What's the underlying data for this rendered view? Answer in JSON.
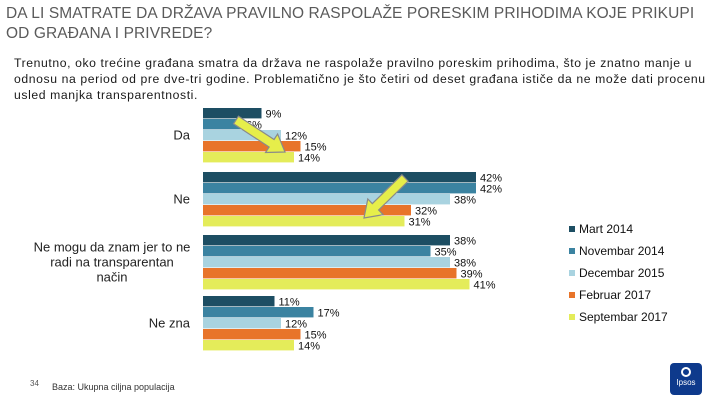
{
  "title": "DA LI SMATRATE DA DRŽAVA PRAVILNO RASPOLAŽE PORESKIM PRIHODIMA KOJE PRIKUPI OD GRAĐANA I PRIVREDE?",
  "subtitle": "Trenutno, oko trećine građana smatra da država ne raspolaže pravilno poreskim prihodima, što je znatno manje u odnosu na period od pre dve-tri godine. Problematično je što četiri od deset građana ističe da ne može dati procenu usled manjka transparentnosti.",
  "footer": {
    "page_number": "34",
    "base": "Baza: Ukupna ciljna populacija"
  },
  "logo": {
    "text": "Ipsos"
  },
  "chart_data": {
    "type": "bar",
    "orientation": "horizontal",
    "categories": [
      "Da",
      "Ne",
      "Ne mogu da znam jer to ne radi na transparentan način",
      "Ne zna"
    ],
    "category_lines": [
      [
        "Da"
      ],
      [
        "Ne"
      ],
      [
        "Ne mogu da znam jer to ne",
        "radi na transparentan",
        "način"
      ],
      [
        "Ne zna"
      ]
    ],
    "series": [
      {
        "name": "Mart 2014",
        "color": "#1d4e63",
        "values": [
          9,
          42,
          38,
          11
        ]
      },
      {
        "name": "Novembar 2014",
        "color": "#3b83a1",
        "values": [
          6,
          42,
          35,
          17
        ]
      },
      {
        "name": "Decembar 2015",
        "color": "#a9d3e0",
        "values": [
          12,
          38,
          38,
          12
        ]
      },
      {
        "name": "Februar 2017",
        "color": "#e8742a",
        "values": [
          15,
          32,
          39,
          15
        ]
      },
      {
        "name": "Septembar 2017",
        "color": "#e4ec5a",
        "values": [
          14,
          31,
          41,
          14
        ]
      }
    ],
    "value_suffix": "%",
    "legend_position": "right",
    "grid": false,
    "annotations": [
      "arrow"
    ]
  }
}
